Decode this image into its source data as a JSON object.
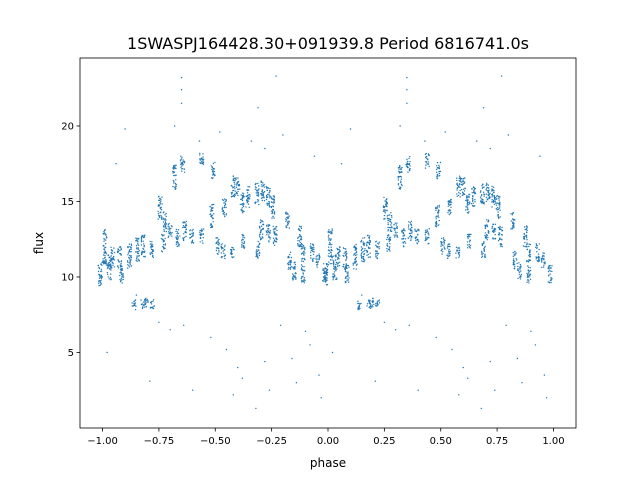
{
  "chart_data": {
    "type": "scatter",
    "title": "1SWASPJ164428.30+091939.8 Period 6816741.0s",
    "xlabel": "phase",
    "ylabel": "flux",
    "xlim": [
      -1.1,
      1.1
    ],
    "ylim": [
      0.0,
      24.5
    ],
    "xticks": [
      -1.0,
      -0.75,
      -0.5,
      -0.25,
      0.0,
      0.25,
      0.5,
      0.75,
      1.0
    ],
    "xtick_labels": [
      "−1.00",
      "−0.75",
      "−0.50",
      "−0.25",
      "0.00",
      "0.25",
      "0.50",
      "0.75",
      "1.00"
    ],
    "yticks": [
      5,
      10,
      15,
      20
    ],
    "ytick_labels": [
      "5",
      "10",
      "15",
      "20"
    ],
    "grid": false,
    "color": "#1f77b4",
    "phase_repeat_offsets": [
      0,
      -1
    ],
    "clusters_note": "[phase, flux_low, flux_high] vertical streaks of points for phase 0..1, repeated at phase-1",
    "clusters": [
      [
        -0.01,
        9.4,
        11.0
      ],
      [
        0.01,
        10.8,
        13.2
      ],
      [
        0.03,
        9.8,
        11.5
      ],
      [
        0.045,
        10.6,
        12.0
      ],
      [
        0.075,
        10.5,
        12.0
      ],
      [
        0.085,
        9.6,
        10.8
      ],
      [
        0.12,
        10.5,
        12.2
      ],
      [
        0.14,
        7.8,
        8.5
      ],
      [
        0.18,
        7.9,
        8.5
      ],
      [
        0.195,
        8.0,
        8.6
      ],
      [
        0.22,
        7.9,
        8.5
      ],
      [
        0.155,
        11.0,
        12.6
      ],
      [
        0.18,
        11.3,
        12.8
      ],
      [
        0.22,
        11.2,
        12.4
      ],
      [
        0.255,
        13.8,
        15.4
      ],
      [
        0.275,
        13.0,
        14.3
      ],
      [
        0.3,
        12.6,
        13.6
      ],
      [
        0.27,
        11.6,
        12.8
      ],
      [
        0.32,
        15.8,
        17.4
      ],
      [
        0.355,
        16.9,
        18.0
      ],
      [
        0.335,
        12.0,
        13.2
      ],
      [
        0.365,
        12.4,
        13.7
      ],
      [
        0.395,
        12.2,
        13.2
      ],
      [
        0.44,
        12.2,
        13.2
      ],
      [
        0.44,
        17.2,
        18.2
      ],
      [
        0.49,
        16.5,
        17.6
      ],
      [
        0.485,
        13.2,
        14.8
      ],
      [
        0.51,
        11.5,
        12.6
      ],
      [
        0.535,
        11.2,
        12.2
      ],
      [
        0.54,
        14.0,
        15.2
      ],
      [
        0.575,
        11.2,
        12.0
      ],
      [
        0.58,
        15.3,
        16.7
      ],
      [
        0.6,
        15.4,
        16.6
      ],
      [
        0.62,
        14.2,
        15.6
      ],
      [
        0.625,
        11.9,
        12.9
      ],
      [
        0.645,
        14.6,
        16.0
      ],
      [
        0.685,
        14.8,
        16.2
      ],
      [
        0.69,
        11.2,
        12.4
      ],
      [
        0.705,
        12.4,
        13.8
      ],
      [
        0.71,
        15.0,
        16.4
      ],
      [
        0.735,
        14.6,
        16.0
      ],
      [
        0.735,
        12.3,
        13.5
      ],
      [
        0.755,
        13.8,
        15.4
      ],
      [
        0.765,
        12.0,
        13.4
      ],
      [
        0.82,
        13.1,
        14.3
      ],
      [
        0.83,
        10.5,
        11.7
      ],
      [
        0.85,
        9.8,
        11.0
      ],
      [
        0.875,
        12.0,
        13.4
      ],
      [
        0.89,
        11.0,
        12.2
      ],
      [
        0.89,
        9.6,
        10.8
      ],
      [
        0.93,
        11.0,
        12.2
      ],
      [
        0.955,
        10.6,
        11.6
      ],
      [
        0.985,
        9.6,
        10.8
      ]
    ],
    "outliers": [
      [
        0.35,
        21.5
      ],
      [
        0.35,
        22.4
      ],
      [
        0.35,
        23.2
      ],
      [
        0.32,
        20.0
      ],
      [
        0.43,
        19.0
      ],
      [
        0.52,
        19.6
      ],
      [
        0.66,
        19.0
      ],
      [
        0.69,
        21.2
      ],
      [
        0.72,
        18.5
      ],
      [
        0.77,
        23.3
      ],
      [
        0.8,
        19.4
      ],
      [
        0.94,
        18.0
      ],
      [
        0.1,
        19.8
      ],
      [
        0.06,
        17.5
      ],
      [
        0.15,
        8.8
      ],
      [
        0.3,
        6.5
      ],
      [
        0.36,
        6.8
      ],
      [
        0.48,
        6.0
      ],
      [
        0.55,
        5.2
      ],
      [
        0.6,
        4.0
      ],
      [
        0.62,
        3.3
      ],
      [
        0.68,
        1.3
      ],
      [
        0.72,
        4.4
      ],
      [
        0.74,
        2.5
      ],
      [
        0.79,
        6.8
      ],
      [
        0.84,
        4.6
      ],
      [
        0.86,
        3.0
      ],
      [
        0.9,
        6.4
      ],
      [
        0.92,
        5.5
      ],
      [
        0.96,
        3.5
      ],
      [
        0.97,
        2.0
      ],
      [
        0.02,
        5.0
      ],
      [
        0.21,
        3.1
      ],
      [
        0.4,
        2.5
      ],
      [
        0.25,
        7.0
      ],
      [
        0.58,
        2.2
      ]
    ]
  }
}
